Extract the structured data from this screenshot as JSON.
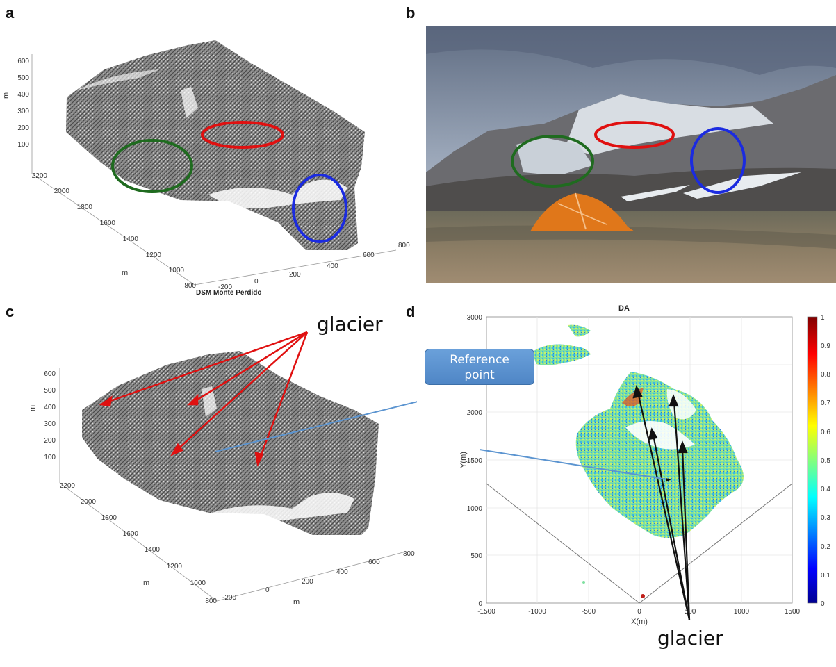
{
  "panels": {
    "a": {
      "letter": "a",
      "title": "DSM Monte Perdido",
      "z_axis": {
        "label": "m",
        "ticks": [
          "600",
          "500",
          "400",
          "300",
          "200",
          "100"
        ]
      },
      "y_axis": {
        "label": "m",
        "ticks": [
          "2200",
          "2000",
          "1800",
          "1600",
          "1400",
          "1200",
          "1000",
          "800"
        ]
      },
      "x_axis": {
        "ticks": [
          "-200",
          "0",
          "200",
          "400",
          "600",
          "800"
        ]
      },
      "ellipse_colors": {
        "green": "#1f6b1f",
        "red": "#e01010",
        "blue": "#1b2be0"
      }
    },
    "b": {
      "letter": "b"
    },
    "c": {
      "letter": "c",
      "glacier_label": "glacier",
      "z_axis": {
        "label": "m",
        "ticks": [
          "600",
          "500",
          "400",
          "300",
          "200",
          "100"
        ]
      },
      "y_axis": {
        "label": "m",
        "ticks": [
          "2200",
          "2000",
          "1800",
          "1600",
          "1400",
          "1200",
          "1000",
          "800"
        ]
      },
      "x_axis": {
        "label": "m",
        "ticks": [
          "-200",
          "0",
          "200",
          "400",
          "600",
          "800"
        ]
      }
    },
    "d": {
      "letter": "d",
      "title": "DA",
      "reference_label_line1": "Reference",
      "reference_label_line2": "point",
      "glacier_label": "glacier",
      "xlabel": "X(m)",
      "ylabel": "Y(m)",
      "x_ticks": [
        "-1500",
        "-1000",
        "-500",
        "0",
        "500",
        "1000",
        "1500"
      ],
      "y_ticks": [
        "3000",
        "2500",
        "2000",
        "1500",
        "1000",
        "500",
        "0"
      ],
      "colorbar_ticks": [
        "1",
        "0.9",
        "0.8",
        "0.7",
        "0.6",
        "0.5",
        "0.4",
        "0.3",
        "0.2",
        "0.1",
        "0"
      ]
    }
  },
  "chart_data": {
    "type": "heatmap",
    "title": "DA",
    "xlabel": "X(m)",
    "ylabel": "Y(m)",
    "xlim": [
      -1500,
      1500
    ],
    "ylim": [
      0,
      3000
    ],
    "color_range": [
      0,
      1
    ],
    "colorbar_ticks": [
      0,
      0.1,
      0.2,
      0.3,
      0.4,
      0.5,
      0.6,
      0.7,
      0.8,
      0.9,
      1
    ]
  }
}
